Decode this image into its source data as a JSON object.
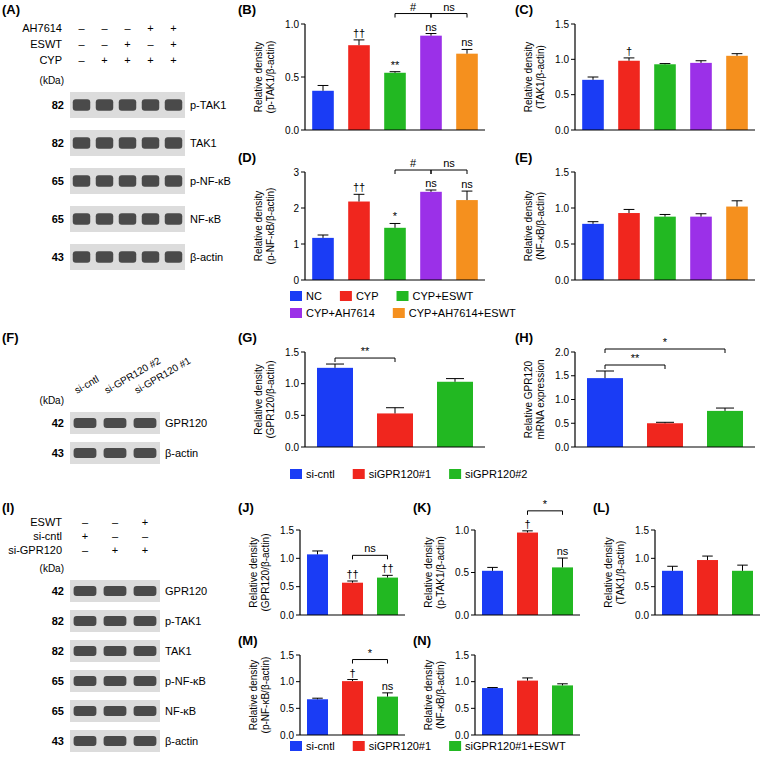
{
  "chart_data": [
    {
      "type": "bar",
      "title": "(B)",
      "ylabel": [
        "Relative density",
        "(p-TAK1/β-actin)"
      ],
      "categories": [
        "NC",
        "CYP",
        "CYP+ESWT",
        "CYP+AH7614",
        "CYP+AH7614+ESWT"
      ],
      "values": [
        0.37,
        0.8,
        0.54,
        0.89,
        0.72
      ],
      "errors": [
        0.05,
        0.05,
        0.01,
        0.02,
        0.04
      ],
      "colors": [
        "#1a3cf5",
        "#f0261e",
        "#22b822",
        "#9b30e8",
        "#f5901e"
      ],
      "ylim": [
        0,
        1
      ],
      "yticks": [
        {
          "value": 0,
          "label": "0.0"
        },
        {
          "value": 0.5,
          "label": "0.5"
        },
        {
          "value": 1,
          "label": "1.0"
        }
      ],
      "tick_labels": "y",
      "annotations": [
        {
          "text": "††",
          "index": 1
        },
        {
          "text": "**",
          "index": 2
        },
        {
          "text": "ns",
          "index": 3
        },
        {
          "text": "ns",
          "index": 4
        }
      ],
      "brackets": [
        {
          "text": "#",
          "from": 2,
          "to": 3
        },
        {
          "text": "ns",
          "from": 3,
          "to": 4
        }
      ],
      "legend": "bottom"
    },
    {
      "type": "bar",
      "title": "(C)",
      "ylabel": [
        "Relative density",
        "(TAK1/β-actin)"
      ],
      "categories": [
        "NC",
        "CYP",
        "CYP+ESWT",
        "CYP+AH7614",
        "CYP+AH7614+ESWT"
      ],
      "values": [
        0.71,
        0.98,
        0.93,
        0.95,
        1.05
      ],
      "errors": [
        0.04,
        0.04,
        0.01,
        0.03,
        0.03
      ],
      "colors": [
        "#1a3cf5",
        "#f0261e",
        "#22b822",
        "#9b30e8",
        "#f5901e"
      ],
      "ylim": [
        0,
        1.5
      ],
      "yticks": [
        {
          "value": 0,
          "label": "0.0"
        },
        {
          "value": 0.5,
          "label": "0.5"
        },
        {
          "value": 1,
          "label": "1.0"
        },
        {
          "value": 1.5,
          "label": "1.5"
        }
      ],
      "tick_labels": "y",
      "annotations": [
        {
          "text": "†",
          "index": 1
        }
      ],
      "brackets": []
    },
    {
      "type": "bar",
      "title": "(D)",
      "ylabel": [
        "Relative density",
        "(p-NF-κB/β-actin)"
      ],
      "categories": [
        "NC",
        "CYP",
        "CYP+ESWT",
        "CYP+AH7614",
        "CYP+AH7614+ESWT"
      ],
      "values": [
        1.17,
        2.18,
        1.45,
        2.45,
        2.22
      ],
      "errors": [
        0.08,
        0.2,
        0.12,
        0.05,
        0.25
      ],
      "colors": [
        "#1a3cf5",
        "#f0261e",
        "#22b822",
        "#9b30e8",
        "#f5901e"
      ],
      "ylim": [
        0,
        3
      ],
      "yticks": [
        0,
        1,
        2,
        3
      ],
      "tick_labels": "y",
      "annotations": [
        {
          "text": "††",
          "index": 1
        },
        {
          "text": "*",
          "index": 2
        },
        {
          "text": "ns",
          "index": 3
        },
        {
          "text": "ns",
          "index": 4
        }
      ],
      "brackets": [
        {
          "text": "#",
          "from": 2,
          "to": 3
        },
        {
          "text": "ns",
          "from": 3,
          "to": 4
        }
      ]
    },
    {
      "type": "bar",
      "title": "(E)",
      "ylabel": [
        "Relative density",
        "(NF-κB/β-actin)"
      ],
      "categories": [
        "NC",
        "CYP",
        "CYP+ESWT",
        "CYP+AH7614",
        "CYP+AH7614+ESWT"
      ],
      "values": [
        0.78,
        0.93,
        0.88,
        0.88,
        1.02
      ],
      "errors": [
        0.03,
        0.05,
        0.03,
        0.04,
        0.08
      ],
      "colors": [
        "#1a3cf5",
        "#f0261e",
        "#22b822",
        "#9b30e8",
        "#f5901e"
      ],
      "ylim": [
        0,
        1.5
      ],
      "yticks": [
        {
          "value": 0,
          "label": "0.0"
        },
        {
          "value": 0.5,
          "label": "0.5"
        },
        {
          "value": 1,
          "label": "1.0"
        },
        {
          "value": 1.5,
          "label": "1.5"
        }
      ],
      "tick_labels": "y",
      "annotations": [],
      "brackets": []
    },
    {
      "type": "bar",
      "title": "(G)",
      "ylabel": [
        "Relative density",
        "(GPR120/β-actin)"
      ],
      "categories": [
        "si-cntl",
        "siGPR120#1",
        "siGPR120#2"
      ],
      "values": [
        1.25,
        0.53,
        1.03
      ],
      "errors": [
        0.06,
        0.09,
        0.05
      ],
      "colors": [
        "#1a3cf5",
        "#f0261e",
        "#22b822"
      ],
      "ylim": [
        0,
        1.5
      ],
      "yticks": [
        {
          "value": 0,
          "label": "0.0"
        },
        {
          "value": 0.5,
          "label": "0.5"
        },
        {
          "value": 1,
          "label": "1.0"
        },
        {
          "value": 1.5,
          "label": "1.5"
        }
      ],
      "tick_labels": "y",
      "annotations": [],
      "brackets": [
        {
          "text": "**",
          "from": 0,
          "to": 1
        }
      ],
      "legend": "bottom"
    },
    {
      "type": "bar",
      "title": "(H)",
      "ylabel": [
        "Relative GPR120",
        "mRNA expression"
      ],
      "categories": [
        "si-cntl",
        "siGPR120#1",
        "siGPR120#2"
      ],
      "values": [
        1.45,
        0.5,
        0.76
      ],
      "errors": [
        0.15,
        0.02,
        0.06
      ],
      "colors": [
        "#1a3cf5",
        "#f0261e",
        "#22b822"
      ],
      "ylim": [
        0,
        2
      ],
      "yticks": [
        {
          "value": 0,
          "label": "0.0"
        },
        {
          "value": 0.5,
          "label": "0.5"
        },
        {
          "value": 1,
          "label": "1.0"
        },
        {
          "value": 1.5,
          "label": "1.5"
        },
        {
          "value": 2,
          "label": "2.0"
        }
      ],
      "tick_labels": "y",
      "annotations": [],
      "brackets": [
        {
          "text": "**",
          "from": 0,
          "to": 1
        },
        {
          "text": "*",
          "from": 0,
          "to": 2
        }
      ]
    },
    {
      "type": "bar",
      "title": "(J)",
      "ylabel": [
        "Relative density",
        "(GPR120/β-actin)"
      ],
      "categories": [
        "si-cntl",
        "siGPR120#1",
        "siGPR120#1+ESWT"
      ],
      "values": [
        1.07,
        0.57,
        0.66
      ],
      "errors": [
        0.06,
        0.03,
        0.04
      ],
      "colors": [
        "#1a3cf5",
        "#f0261e",
        "#22b822"
      ],
      "ylim": [
        0,
        1.5
      ],
      "yticks": [
        {
          "value": 0,
          "label": "0.0"
        },
        {
          "value": 0.5,
          "label": "0.5"
        },
        {
          "value": 1,
          "label": "1.0"
        },
        {
          "value": 1.5,
          "label": "1.5"
        }
      ],
      "tick_labels": "y",
      "annotations": [
        {
          "text": "††",
          "index": 1
        },
        {
          "text": "††",
          "index": 2
        }
      ],
      "brackets": [
        {
          "text": "ns",
          "from": 1,
          "to": 2
        }
      ],
      "legend": "bottom"
    },
    {
      "type": "bar",
      "title": "(K)",
      "ylabel": [
        "Relative density",
        "(p-TAK1/β-actin)"
      ],
      "categories": [
        "si-cntl",
        "siGPR120#1",
        "siGPR120#1+ESWT"
      ],
      "values": [
        0.52,
        0.97,
        0.56
      ],
      "errors": [
        0.04,
        0.02,
        0.11
      ],
      "colors": [
        "#1a3cf5",
        "#f0261e",
        "#22b822"
      ],
      "ylim": [
        0,
        1
      ],
      "yticks": [
        {
          "value": 0,
          "label": "0.0"
        },
        {
          "value": 0.5,
          "label": "0.5"
        },
        {
          "value": 1,
          "label": "1.0"
        }
      ],
      "tick_labels": "y",
      "annotations": [
        {
          "text": "†",
          "index": 1
        },
        {
          "text": "ns",
          "index": 2
        }
      ],
      "brackets": [
        {
          "text": "*",
          "from": 1,
          "to": 2
        }
      ]
    },
    {
      "type": "bar",
      "title": "(L)",
      "ylabel": [
        "Relative density",
        "(TAK1/β-actin)"
      ],
      "categories": [
        "si-cntl",
        "siGPR120#1",
        "siGPR120#1+ESWT"
      ],
      "values": [
        0.78,
        0.97,
        0.78
      ],
      "errors": [
        0.08,
        0.07,
        0.1
      ],
      "colors": [
        "#1a3cf5",
        "#f0261e",
        "#22b822"
      ],
      "ylim": [
        0,
        1.5
      ],
      "yticks": [
        {
          "value": 0,
          "label": "0.0"
        },
        {
          "value": 0.5,
          "label": "0.5"
        },
        {
          "value": 1,
          "label": "1.0"
        },
        {
          "value": 1.5,
          "label": "1.5"
        }
      ],
      "tick_labels": "y",
      "annotations": [],
      "brackets": []
    },
    {
      "type": "bar",
      "title": "(M)",
      "ylabel": [
        "Relative density",
        "(p-NF-κB/β-actin)"
      ],
      "categories": [
        "si-cntl",
        "siGPR120#1",
        "siGPR120#1+ESWT"
      ],
      "values": [
        0.67,
        1.01,
        0.72
      ],
      "errors": [
        0.02,
        0.03,
        0.07
      ],
      "colors": [
        "#1a3cf5",
        "#f0261e",
        "#22b822"
      ],
      "ylim": [
        0,
        1.5
      ],
      "yticks": [
        {
          "value": 0,
          "label": "0.0"
        },
        {
          "value": 0.5,
          "label": "0.5"
        },
        {
          "value": 1,
          "label": "1.0"
        },
        {
          "value": 1.5,
          "label": "1.5"
        }
      ],
      "tick_labels": "y",
      "annotations": [
        {
          "text": "†",
          "index": 1
        },
        {
          "text": "ns",
          "index": 2
        }
      ],
      "brackets": [
        {
          "text": "*",
          "from": 1,
          "to": 2
        }
      ]
    },
    {
      "type": "bar",
      "title": "(N)",
      "ylabel": [
        "Relative density",
        "(NF-κB/β-actin)"
      ],
      "categories": [
        "si-cntl",
        "siGPR120#1",
        "siGPR120#1+ESWT"
      ],
      "values": [
        0.88,
        1.02,
        0.93
      ],
      "errors": [
        0.01,
        0.05,
        0.03
      ],
      "colors": [
        "#1a3cf5",
        "#f0261e",
        "#22b822"
      ],
      "ylim": [
        0,
        1.5
      ],
      "yticks": [
        {
          "value": 0,
          "label": "0.0"
        },
        {
          "value": 0.5,
          "label": "0.5"
        },
        {
          "value": 1,
          "label": "1.0"
        },
        {
          "value": 1.5,
          "label": "1.5"
        }
      ],
      "tick_labels": "y",
      "annotations": [],
      "brackets": []
    }
  ],
  "blots": [
    {
      "title": "(A)",
      "kda_label": "(kDa)",
      "conditions": [
        {
          "name": "AH7614",
          "signs": [
            "–",
            "–",
            "–",
            "+",
            "+"
          ]
        },
        {
          "name": "ESWT",
          "signs": [
            "–",
            "–",
            "+",
            "–",
            "+"
          ]
        },
        {
          "name": "CYP",
          "signs": [
            "–",
            "+",
            "+",
            "+",
            "+"
          ]
        }
      ],
      "bands": [
        {
          "name": "p-TAK1",
          "kda": 82
        },
        {
          "name": "TAK1",
          "kda": 82
        },
        {
          "name": "p-NF-κB",
          "kda": 65
        },
        {
          "name": "NF-κB",
          "kda": 65
        },
        {
          "name": "β-actin",
          "kda": 43
        }
      ]
    },
    {
      "title": "(F)",
      "kda_label": "(kDa)",
      "lanes": [
        "si-cntl",
        "si-GPR120 #2",
        "si-GPR120 #1"
      ],
      "bands": [
        {
          "name": "GPR120",
          "kda": 42
        },
        {
          "name": "β-actin",
          "kda": 43
        }
      ]
    },
    {
      "title": "(I)",
      "kda_label": "(kDa)",
      "conditions": [
        {
          "name": "ESWT",
          "signs": [
            "–",
            "–",
            "+"
          ]
        },
        {
          "name": "si-cntl",
          "signs": [
            "+",
            "–",
            "–"
          ]
        },
        {
          "name": "si-GPR120",
          "signs": [
            "–",
            "+",
            "+"
          ]
        }
      ],
      "bands": [
        {
          "name": "GPR120",
          "kda": 42
        },
        {
          "name": "p-TAK1",
          "kda": 82
        },
        {
          "name": "TAK1",
          "kda": 82
        },
        {
          "name": "p-NF-κB",
          "kda": 65
        },
        {
          "name": "NF-κB",
          "kda": 65
        },
        {
          "name": "β-actin",
          "kda": 43
        }
      ]
    }
  ]
}
